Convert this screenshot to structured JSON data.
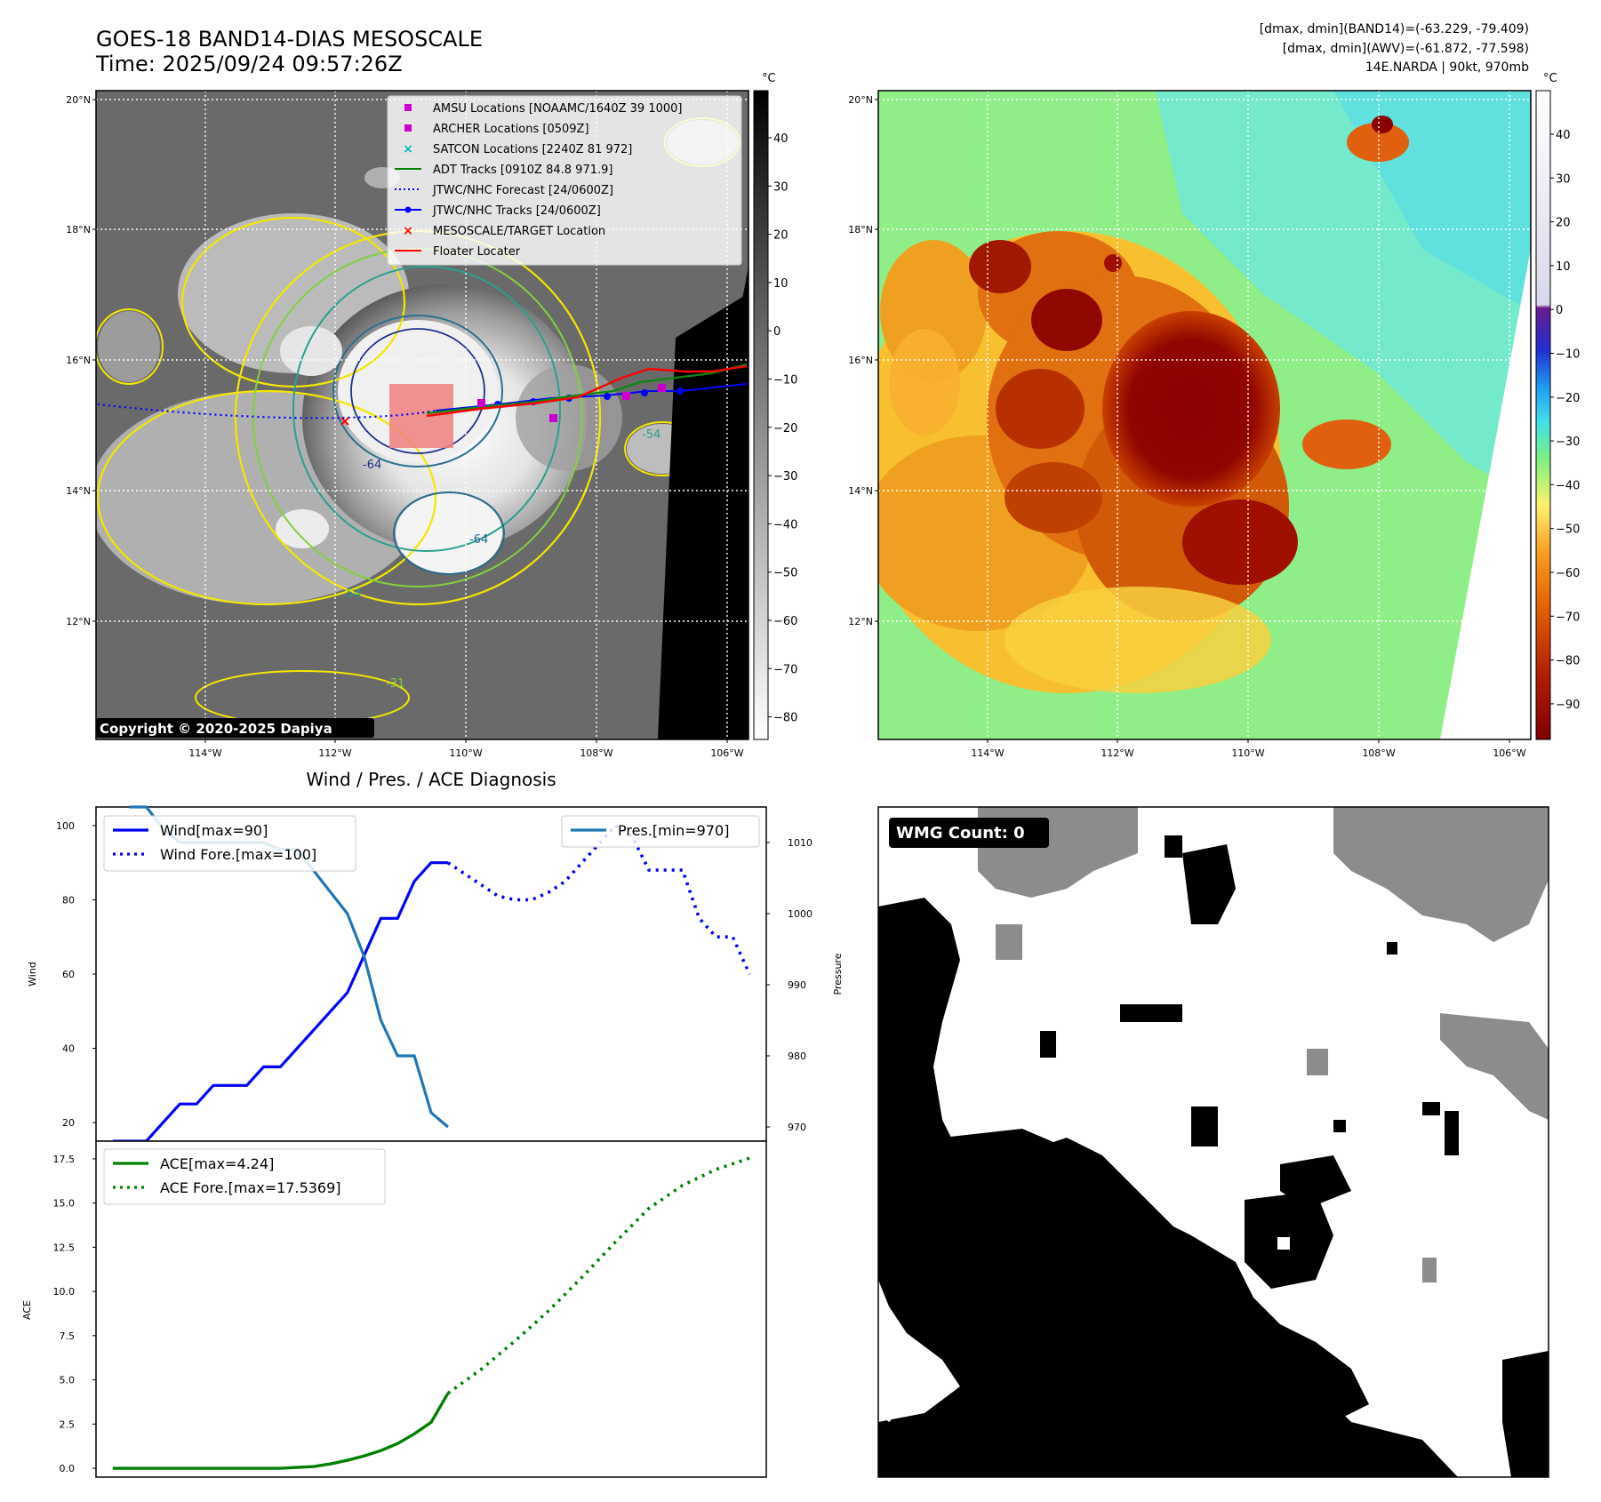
{
  "header": {
    "title_line1": "GOES-18 BAND14-DIAS MESOSCALE",
    "title_line2": "Time: 2025/09/24 09:57:26Z",
    "info_line1": "[dmax, dmin](BAND14)=(-63.229, -79.409)",
    "info_line2": "[dmax, dmin](AWV)=(-61.872, -77.598)",
    "info_line3": "14E.NARDA | 90kt, 970mb"
  },
  "maps": {
    "lat_ticks": [
      "20°N",
      "18°N",
      "16°N",
      "14°N",
      "12°N"
    ],
    "lon_ticks": [
      "114°W",
      "112°W",
      "110°W",
      "108°W",
      "106°W"
    ],
    "copyright": "Copyright © 2020-2025 Dapiya",
    "contour_labels": [
      "-64",
      "-64",
      "-54",
      "-54",
      "-31"
    ]
  },
  "legend_map": {
    "items": [
      {
        "label": "AMSU Locations [NOAAMC/1640Z 39 1000]",
        "color": "#cc00cc",
        "symbol": "square"
      },
      {
        "label": "ARCHER Locations [0509Z]",
        "color": "#cc00cc",
        "symbol": "square"
      },
      {
        "label": "SATCON Locations [2240Z 81 972]",
        "color": "#00bbbb",
        "symbol": "x"
      },
      {
        "label": "ADT Tracks [0910Z 84.8 971.9]",
        "color": "#008000",
        "symbol": "line"
      },
      {
        "label": "JTWC/NHC Forecast [24/0600Z]",
        "color": "#0000ff",
        "symbol": "dotted"
      },
      {
        "label": "JTWC/NHC Tracks [24/0600Z]",
        "color": "#0000ff",
        "symbol": "line-dot"
      },
      {
        "label": "MESOSCALE/TARGET Location",
        "color": "#ff0000",
        "symbol": "x"
      },
      {
        "label": "Floater Locater",
        "color": "#ff0000",
        "symbol": "line"
      }
    ]
  },
  "colorbar_gray": {
    "unit": "°C",
    "ticks": [
      "40",
      "30",
      "20",
      "10",
      "0",
      "−10",
      "−20",
      "−30",
      "−40",
      "−50",
      "−60",
      "−70",
      "−80"
    ]
  },
  "colorbar_color": {
    "unit": "°C",
    "ticks": [
      "40",
      "30",
      "20",
      "10",
      "0",
      "−10",
      "−20",
      "−30",
      "−40",
      "−50",
      "−60",
      "−70",
      "−80",
      "−90"
    ]
  },
  "chart_data": [
    {
      "type": "line",
      "title": "Wind / Pres. / ACE Diagnosis",
      "ylabel": "Wind",
      "ylabel_right": "Pressure",
      "ylim": [
        15,
        105
      ],
      "ylim_right": [
        968,
        1015
      ],
      "yticks": [
        20,
        40,
        60,
        80,
        100
      ],
      "yticks_right": [
        970,
        980,
        990,
        1000,
        1010
      ],
      "series": [
        {
          "name": "Wind[max=90]",
          "color": "#0000ff",
          "style": "solid",
          "x": [
            0,
            1,
            2,
            3,
            4,
            5,
            6,
            7,
            8,
            9,
            10,
            11,
            12,
            13,
            14,
            15,
            16,
            17,
            18,
            19,
            20
          ],
          "values": [
            15,
            15,
            15,
            20,
            25,
            25,
            30,
            30,
            30,
            35,
            35,
            40,
            45,
            50,
            55,
            65,
            75,
            75,
            85,
            90,
            90
          ]
        },
        {
          "name": "Wind Fore.[max=100]",
          "color": "#0000ff",
          "style": "dotted",
          "x": [
            20,
            21,
            22,
            23,
            24,
            25,
            26,
            27,
            28,
            29,
            30,
            31,
            32,
            33,
            34,
            35,
            36,
            37,
            38
          ],
          "values": [
            90,
            87,
            84,
            81,
            80,
            80,
            82,
            85,
            90,
            95,
            100,
            97,
            88,
            88,
            88,
            75,
            70,
            70,
            60
          ]
        },
        {
          "name": "Pres.[min=970]",
          "color": "#1f77b4",
          "style": "solid",
          "axis": "right",
          "x": [
            1,
            2,
            3,
            4,
            5,
            6,
            7,
            8,
            9,
            10,
            11,
            12,
            13,
            14,
            15,
            16,
            17,
            18,
            19,
            20
          ],
          "values": [
            1015,
            1015,
            1012,
            1010,
            1010,
            1010,
            1010,
            1010,
            1010,
            1009,
            1009,
            1006,
            1003,
            1000,
            994,
            985,
            980,
            980,
            972,
            970
          ]
        }
      ]
    },
    {
      "type": "line",
      "ylabel": "ACE",
      "ylim": [
        -0.5,
        18.5
      ],
      "yticks": [
        "0.0",
        "2.5",
        "5.0",
        "7.5",
        "10.0",
        "12.5",
        "15.0",
        "17.5"
      ],
      "series": [
        {
          "name": "ACE[max=4.24]",
          "color": "#008000",
          "style": "solid",
          "x": [
            0,
            2,
            4,
            6,
            8,
            10,
            12,
            13,
            14,
            15,
            16,
            17,
            18,
            19,
            20
          ],
          "values": [
            0,
            0,
            0,
            0,
            0,
            0,
            0.1,
            0.25,
            0.45,
            0.7,
            1.0,
            1.4,
            1.95,
            2.6,
            4.24
          ]
        },
        {
          "name": "ACE Fore.[max=17.5369]",
          "color": "#008000",
          "style": "dotted",
          "x": [
            20,
            22,
            24,
            26,
            28,
            30,
            32,
            34,
            36,
            38
          ],
          "values": [
            4.24,
            5.6,
            7.2,
            8.9,
            10.8,
            12.8,
            14.7,
            16.0,
            16.9,
            17.54
          ]
        }
      ]
    }
  ],
  "wmg": {
    "label": "WMG Count: 0"
  }
}
